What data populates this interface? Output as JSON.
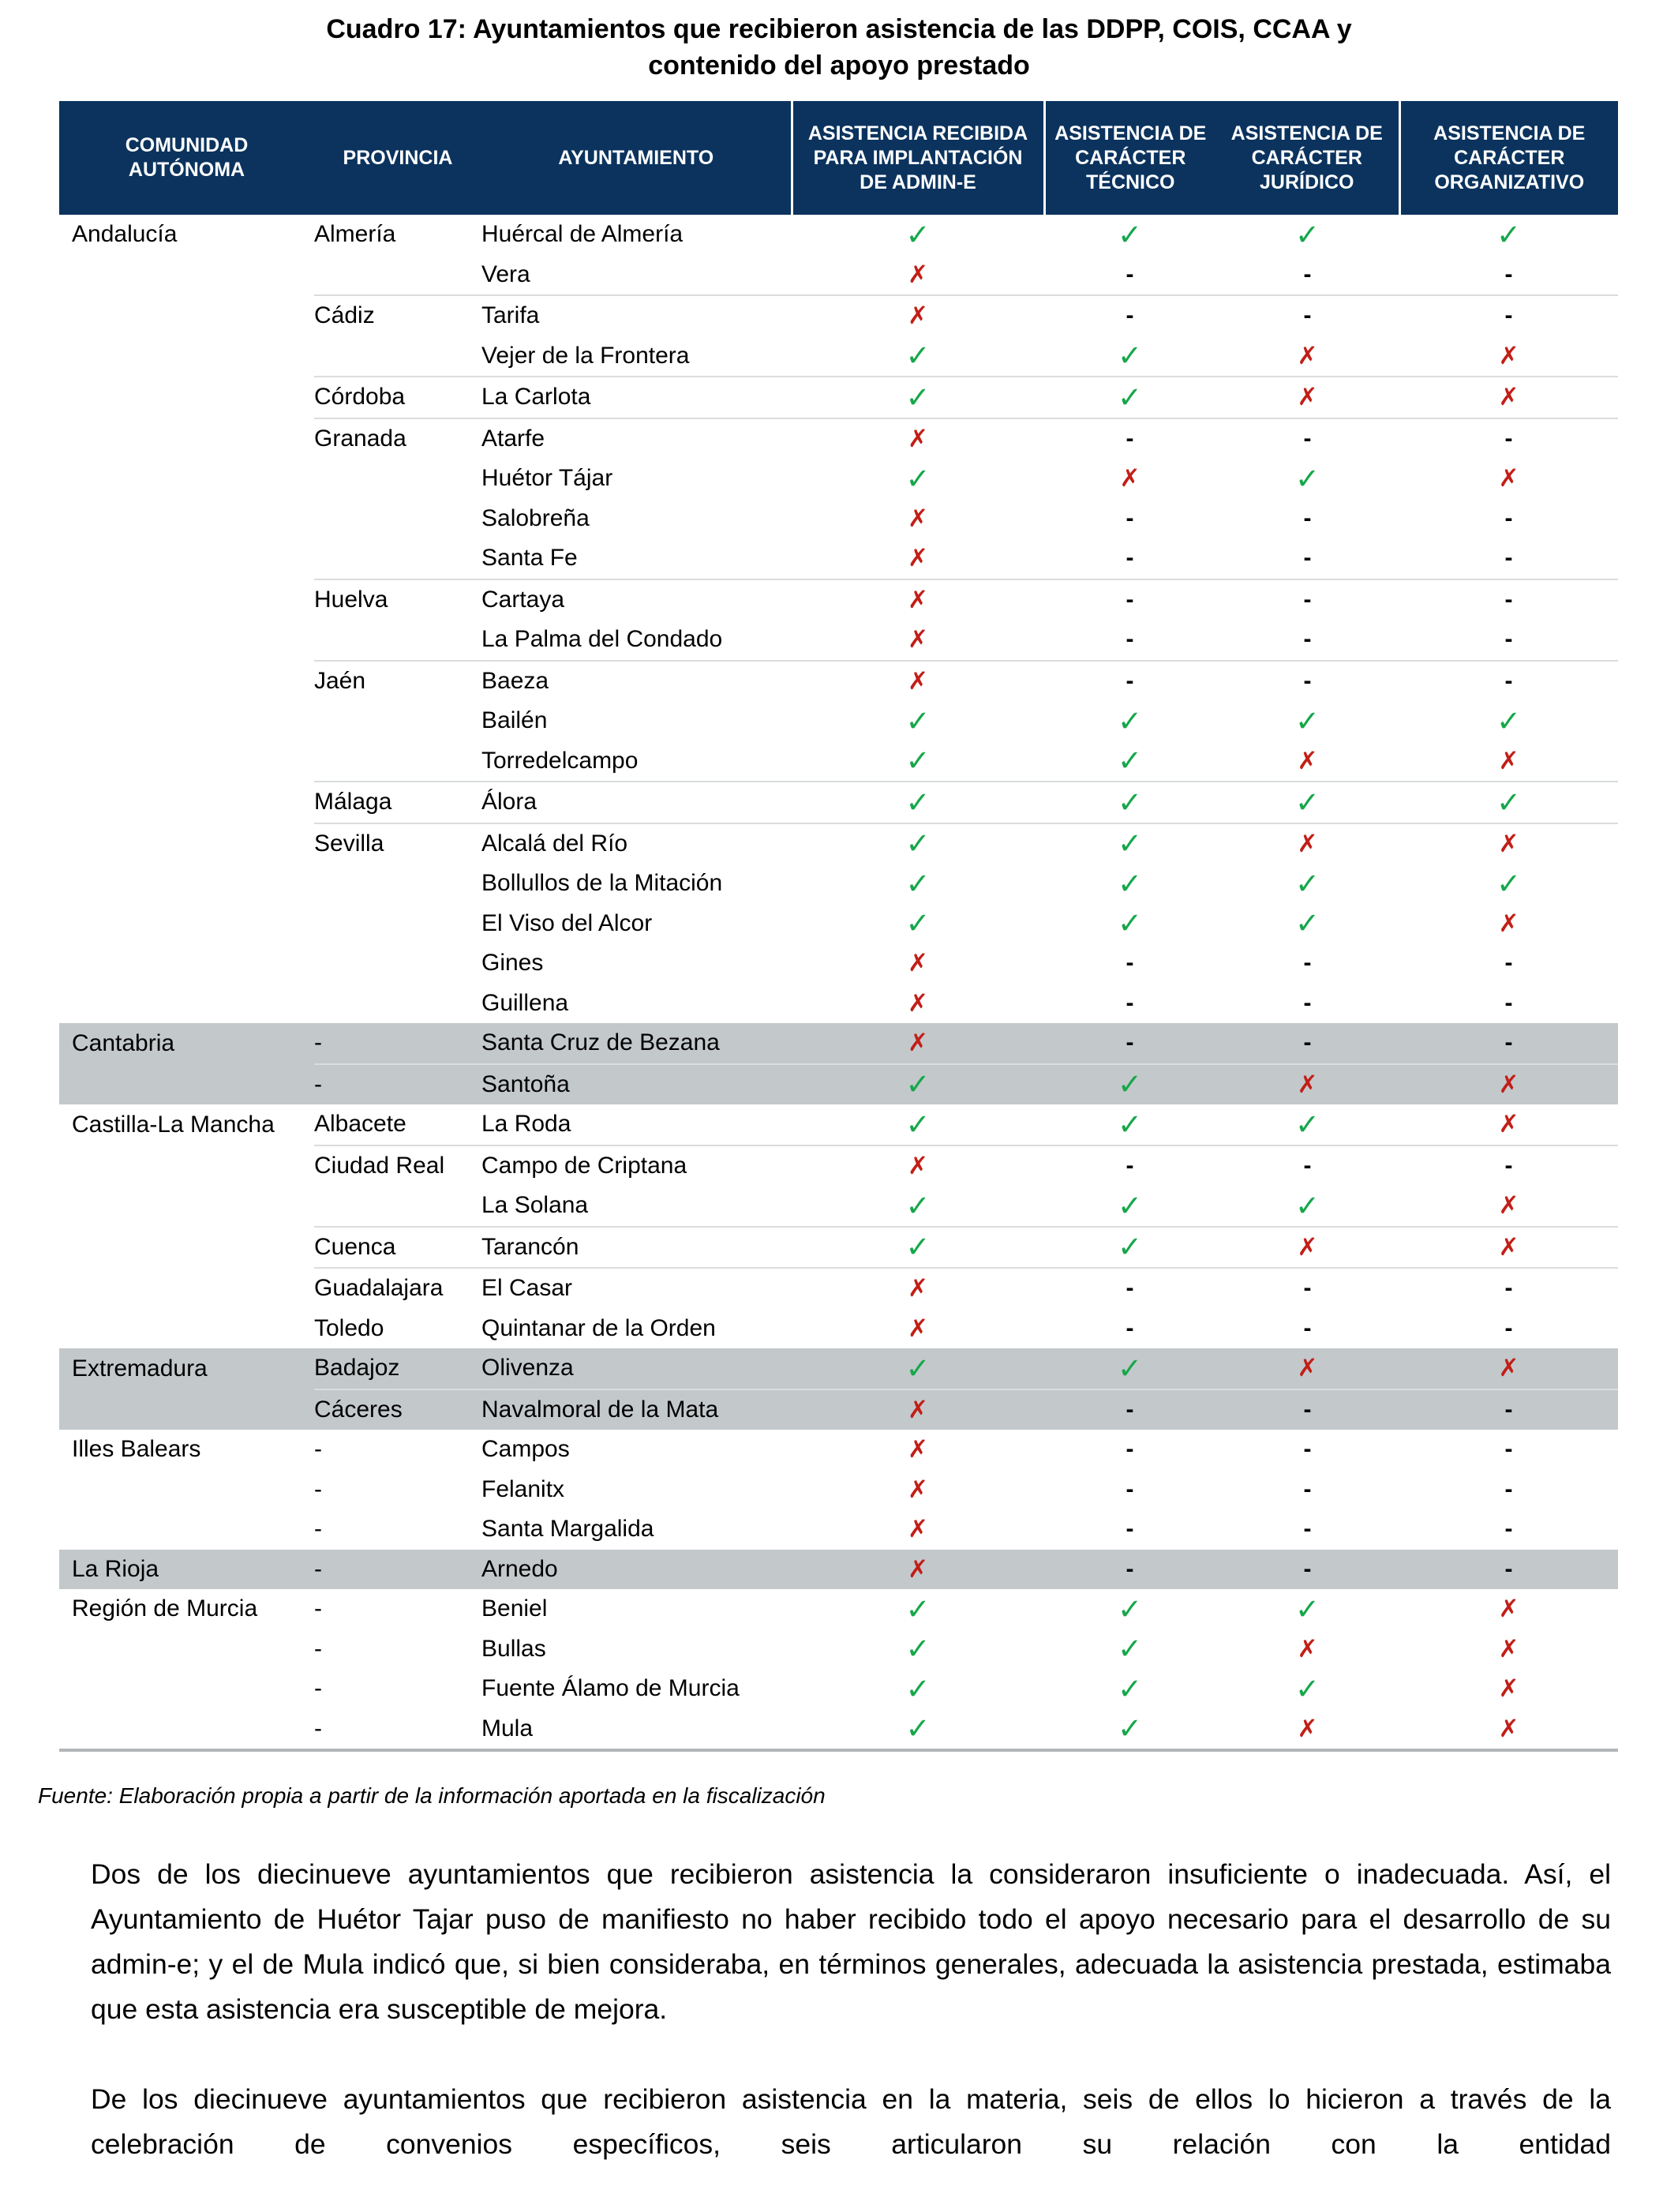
{
  "title": {
    "line1": "Cuadro 17: Ayuntamientos que recibieron asistencia de las DDPP, COIS, CCAA y",
    "line2": "contenido del apoyo prestado"
  },
  "colors": {
    "header_bg": "#0B335E",
    "header_text": "#FFFFFF",
    "shaded_row_bg": "#C3C8CB",
    "check_green": "#16A74A",
    "cross_red": "#C21E17",
    "divider_line": "#DADCDD",
    "table_bottom_border": "#B3B6B8"
  },
  "table": {
    "headers": [
      "COMUNIDAD AUTÓNOMA",
      "PROVINCIA",
      "AYUNTAMIENTO",
      "ASISTENCIA RECIBIDA PARA IMPLANTACIÓN DE ADMIN-E",
      "ASISTENCIA DE CARÁCTER TÉCNICO",
      "ASISTENCIA DE CARÁCTER JURÍDICO",
      "ASISTENCIA DE CARÁCTER ORGANIZATIVO"
    ],
    "marks_legend": {
      "check": "✓",
      "cross": "✗",
      "dash": "-"
    },
    "rows": [
      {
        "comunidad": "Andalucía",
        "provincia": "Almería",
        "ayuntamiento": "Huércal de Almería",
        "marks": [
          "check",
          "check",
          "check",
          "check"
        ],
        "shaded": false,
        "divider": false
      },
      {
        "comunidad": "",
        "provincia": "",
        "ayuntamiento": "Vera",
        "marks": [
          "cross",
          "dash",
          "dash",
          "dash"
        ],
        "shaded": false,
        "divider": false
      },
      {
        "comunidad": "",
        "provincia": "Cádiz",
        "ayuntamiento": "Tarifa",
        "marks": [
          "cross",
          "dash",
          "dash",
          "dash"
        ],
        "shaded": false,
        "divider": true
      },
      {
        "comunidad": "",
        "provincia": "",
        "ayuntamiento": "Vejer de la Frontera",
        "marks": [
          "check",
          "check",
          "cross",
          "cross"
        ],
        "shaded": false,
        "divider": false
      },
      {
        "comunidad": "",
        "provincia": "Córdoba",
        "ayuntamiento": "La Carlota",
        "marks": [
          "check",
          "check",
          "cross",
          "cross"
        ],
        "shaded": false,
        "divider": true
      },
      {
        "comunidad": "",
        "provincia": "Granada",
        "ayuntamiento": "Atarfe",
        "marks": [
          "cross",
          "dash",
          "dash",
          "dash"
        ],
        "shaded": false,
        "divider": true
      },
      {
        "comunidad": "",
        "provincia": "",
        "ayuntamiento": "Huétor Tájar",
        "marks": [
          "check",
          "cross",
          "check",
          "cross"
        ],
        "shaded": false,
        "divider": false
      },
      {
        "comunidad": "",
        "provincia": "",
        "ayuntamiento": "Salobreña",
        "marks": [
          "cross",
          "dash",
          "dash",
          "dash"
        ],
        "shaded": false,
        "divider": false
      },
      {
        "comunidad": "",
        "provincia": "",
        "ayuntamiento": "Santa Fe",
        "marks": [
          "cross",
          "dash",
          "dash",
          "dash"
        ],
        "shaded": false,
        "divider": false
      },
      {
        "comunidad": "",
        "provincia": "Huelva",
        "ayuntamiento": "Cartaya",
        "marks": [
          "cross",
          "dash",
          "dash",
          "dash"
        ],
        "shaded": false,
        "divider": true
      },
      {
        "comunidad": "",
        "provincia": "",
        "ayuntamiento": "La Palma del Condado",
        "marks": [
          "cross",
          "dash",
          "dash",
          "dash"
        ],
        "shaded": false,
        "divider": false
      },
      {
        "comunidad": "",
        "provincia": "Jaén",
        "ayuntamiento": "Baeza",
        "marks": [
          "cross",
          "dash",
          "dash",
          "dash"
        ],
        "shaded": false,
        "divider": true
      },
      {
        "comunidad": "",
        "provincia": "",
        "ayuntamiento": "Bailén",
        "marks": [
          "check",
          "check",
          "check",
          "check"
        ],
        "shaded": false,
        "divider": false
      },
      {
        "comunidad": "",
        "provincia": "",
        "ayuntamiento": "Torredelcampo",
        "marks": [
          "check",
          "check",
          "cross",
          "cross"
        ],
        "shaded": false,
        "divider": false
      },
      {
        "comunidad": "",
        "provincia": "Málaga",
        "ayuntamiento": "Álora",
        "marks": [
          "check",
          "check",
          "check",
          "check"
        ],
        "shaded": false,
        "divider": true
      },
      {
        "comunidad": "",
        "provincia": "Sevilla",
        "ayuntamiento": "Alcalá del Río",
        "marks": [
          "check",
          "check",
          "cross",
          "cross"
        ],
        "shaded": false,
        "divider": true
      },
      {
        "comunidad": "",
        "provincia": "",
        "ayuntamiento": "Bollullos de la Mitación",
        "marks": [
          "check",
          "check",
          "check",
          "check"
        ],
        "shaded": false,
        "divider": false
      },
      {
        "comunidad": "",
        "provincia": "",
        "ayuntamiento": "El Viso del Alcor",
        "marks": [
          "check",
          "check",
          "check",
          "cross"
        ],
        "shaded": false,
        "divider": false
      },
      {
        "comunidad": "",
        "provincia": "",
        "ayuntamiento": "Gines",
        "marks": [
          "cross",
          "dash",
          "dash",
          "dash"
        ],
        "shaded": false,
        "divider": false
      },
      {
        "comunidad": "",
        "provincia": "",
        "ayuntamiento": "Guillena",
        "marks": [
          "cross",
          "dash",
          "dash",
          "dash"
        ],
        "shaded": false,
        "divider": false
      },
      {
        "comunidad": "Cantabria",
        "provincia": "-",
        "ayuntamiento": "Santa Cruz de Bezana",
        "marks": [
          "cross",
          "dash",
          "dash",
          "dash"
        ],
        "shaded": true,
        "divider": false
      },
      {
        "comunidad": "",
        "provincia": "-",
        "ayuntamiento": "Santoña",
        "marks": [
          "check",
          "check",
          "cross",
          "cross"
        ],
        "shaded": true,
        "divider": true
      },
      {
        "comunidad": "Castilla-La Mancha",
        "provincia": "Albacete",
        "ayuntamiento": "La Roda",
        "marks": [
          "check",
          "check",
          "check",
          "cross"
        ],
        "shaded": false,
        "divider": false
      },
      {
        "comunidad": "",
        "provincia": "Ciudad Real",
        "ayuntamiento": "Campo de Criptana",
        "marks": [
          "cross",
          "dash",
          "dash",
          "dash"
        ],
        "shaded": false,
        "divider": true
      },
      {
        "comunidad": "",
        "provincia": "",
        "ayuntamiento": "La Solana",
        "marks": [
          "check",
          "check",
          "check",
          "cross"
        ],
        "shaded": false,
        "divider": false
      },
      {
        "comunidad": "",
        "provincia": "Cuenca",
        "ayuntamiento": "Tarancón",
        "marks": [
          "check",
          "check",
          "cross",
          "cross"
        ],
        "shaded": false,
        "divider": true
      },
      {
        "comunidad": "",
        "provincia": "Guadalajara",
        "ayuntamiento": "El Casar",
        "marks": [
          "cross",
          "dash",
          "dash",
          "dash"
        ],
        "shaded": false,
        "divider": true
      },
      {
        "comunidad": "",
        "provincia": "Toledo",
        "ayuntamiento": "Quintanar de la Orden",
        "marks": [
          "cross",
          "dash",
          "dash",
          "dash"
        ],
        "shaded": false,
        "divider": false
      },
      {
        "comunidad": "Extremadura",
        "provincia": "Badajoz",
        "ayuntamiento": "Olivenza",
        "marks": [
          "check",
          "check",
          "cross",
          "cross"
        ],
        "shaded": true,
        "divider": false
      },
      {
        "comunidad": "",
        "provincia": "Cáceres",
        "ayuntamiento": "Navalmoral de la Mata",
        "marks": [
          "cross",
          "dash",
          "dash",
          "dash"
        ],
        "shaded": true,
        "divider": true
      },
      {
        "comunidad": "Illes Balears",
        "provincia": "-",
        "ayuntamiento": "Campos",
        "marks": [
          "cross",
          "dash",
          "dash",
          "dash"
        ],
        "shaded": false,
        "divider": false
      },
      {
        "comunidad": "",
        "provincia": "-",
        "ayuntamiento": "Felanitx",
        "marks": [
          "cross",
          "dash",
          "dash",
          "dash"
        ],
        "shaded": false,
        "divider": false
      },
      {
        "comunidad": "",
        "provincia": "-",
        "ayuntamiento": "Santa Margalida",
        "marks": [
          "cross",
          "dash",
          "dash",
          "dash"
        ],
        "shaded": false,
        "divider": false
      },
      {
        "comunidad": "La Rioja",
        "provincia": "-",
        "ayuntamiento": "Arnedo",
        "marks": [
          "cross",
          "dash",
          "dash",
          "dash"
        ],
        "shaded": true,
        "divider": false
      },
      {
        "comunidad": "Región de Murcia",
        "provincia": "-",
        "ayuntamiento": "Beniel",
        "marks": [
          "check",
          "check",
          "check",
          "cross"
        ],
        "shaded": false,
        "divider": false
      },
      {
        "comunidad": "",
        "provincia": "-",
        "ayuntamiento": "Bullas",
        "marks": [
          "check",
          "check",
          "cross",
          "cross"
        ],
        "shaded": false,
        "divider": false
      },
      {
        "comunidad": "",
        "provincia": "-",
        "ayuntamiento": "Fuente Álamo de Murcia",
        "marks": [
          "check",
          "check",
          "check",
          "cross"
        ],
        "shaded": false,
        "divider": false
      },
      {
        "comunidad": "",
        "provincia": "-",
        "ayuntamiento": "Mula",
        "marks": [
          "check",
          "check",
          "cross",
          "cross"
        ],
        "shaded": false,
        "divider": false
      }
    ]
  },
  "fuente": "Fuente: Elaboración propia a partir de la información aportada en la fiscalización",
  "paragraphs": [
    "Dos de los diecinueve ayuntamientos que recibieron asistencia la consideraron insuficiente o inadecuada. Así, el Ayuntamiento de Huétor Tajar puso de manifiesto no haber recibido todo el apoyo necesario para el desarrollo de su admin-e; y el de Mula indicó que, si bien consideraba, en términos generales, adecuada la asistencia prestada, estimaba que esta asistencia era susceptible de mejora.",
    "De los diecinueve ayuntamientos que recibieron asistencia en la materia, seis de ellos lo hicieron a través de la celebración de convenios específicos, seis articularon su relación con la entidad"
  ]
}
